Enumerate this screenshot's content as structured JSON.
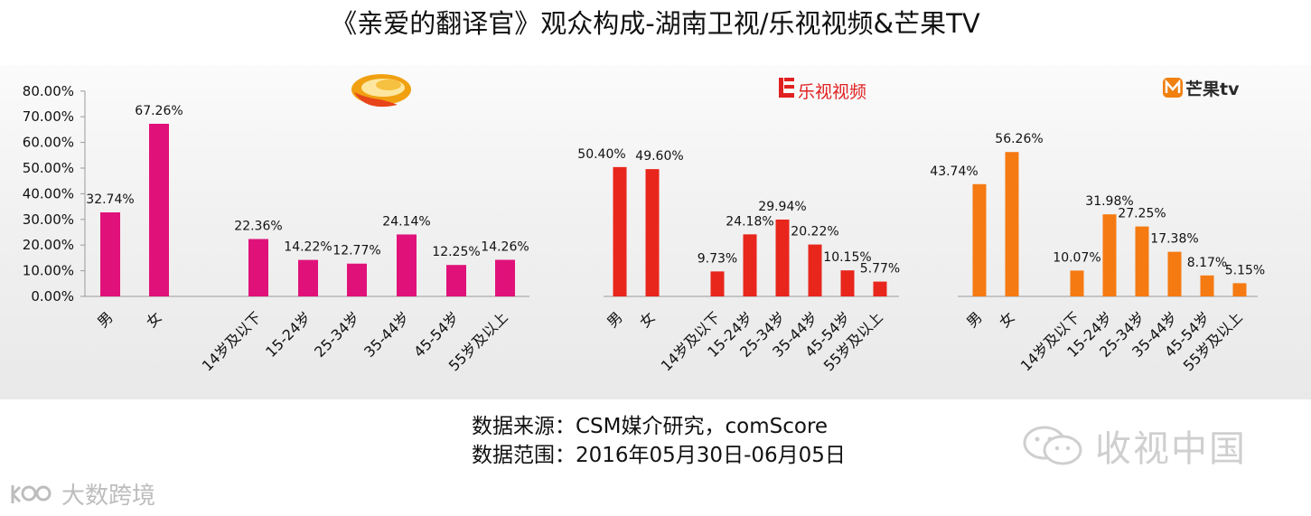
{
  "title": "《亲爱的翻译官》观众构成-湖南卫视/乐视视频&芒果TV",
  "footer": {
    "source": "数据来源：CSM媒介研究，comScore",
    "range": "数据范围：2016年05月30日-06月05日"
  },
  "watermarks": {
    "right": "收视中国",
    "left": "大数跨境"
  },
  "logos": {
    "letv": "乐视视频",
    "mango": "芒果tv"
  },
  "chart_data": [
    {
      "type": "bar",
      "panel": "hunan",
      "color": "#e0127a",
      "categories": [
        "男",
        "女",
        "14岁及以下",
        "15-24岁",
        "25-34岁",
        "35-44岁",
        "45-54岁",
        "55岁及以上"
      ],
      "values": [
        32.74,
        67.26,
        22.36,
        14.22,
        12.77,
        24.14,
        12.25,
        14.26
      ],
      "labels": [
        "32.74%",
        "67.26%",
        "22.36%",
        "14.22%",
        "12.77%",
        "24.14%",
        "12.25%",
        "14.26%"
      ],
      "yticks": [
        "0.00%",
        "10.00%",
        "20.00%",
        "30.00%",
        "40.00%",
        "50.00%",
        "60.00%",
        "70.00%",
        "80.00%"
      ],
      "ylim": [
        0,
        80
      ]
    },
    {
      "type": "bar",
      "panel": "letv",
      "color": "#e8261c",
      "categories": [
        "男",
        "女",
        "14岁及以下",
        "15-24岁",
        "25-34岁",
        "35-44岁",
        "45-54岁",
        "55岁及以上"
      ],
      "values": [
        50.4,
        49.6,
        9.73,
        24.18,
        29.94,
        20.22,
        10.15,
        5.77
      ],
      "labels": [
        "50.40%",
        "49.60%",
        "9.73%",
        "24.18%",
        "29.94%",
        "20.22%",
        "10.15%",
        "5.77%"
      ],
      "ylim": [
        0,
        60
      ]
    },
    {
      "type": "bar",
      "panel": "mango",
      "color": "#f57a12",
      "categories": [
        "男",
        "女",
        "14岁及以下",
        "15-24岁",
        "25-34岁",
        "35-44岁",
        "45-54岁",
        "55岁及以上"
      ],
      "values": [
        43.74,
        56.26,
        10.07,
        31.98,
        27.25,
        17.38,
        8.17,
        5.15
      ],
      "labels": [
        "43.74%",
        "56.26%",
        "10.07%",
        "31.98%",
        "27.25%",
        "17.38%",
        "8.17%",
        "5.15%"
      ],
      "ylim": [
        0,
        60
      ]
    }
  ]
}
